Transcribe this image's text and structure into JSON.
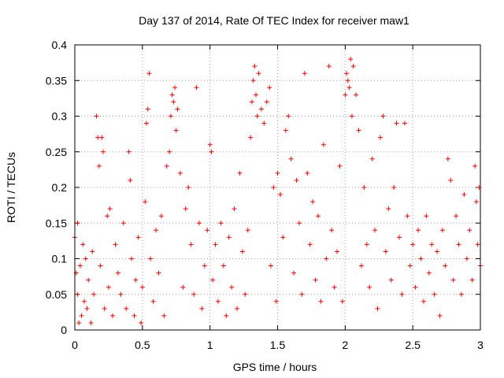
{
  "chart_data": {
    "type": "scatter",
    "title": "Day 137 of 2014, Rate Of TEC Index for receiver maw1",
    "xlabel": "GPS time / hours",
    "ylabel": "ROTI / TECUs",
    "xlim": [
      0,
      3
    ],
    "ylim": [
      0,
      0.4
    ],
    "x_ticks": [
      0,
      0.5,
      1,
      1.5,
      2,
      2.5,
      3
    ],
    "x_tick_labels": [
      "0",
      "0.5",
      "1",
      "1.5",
      "2",
      "2.5",
      "3"
    ],
    "y_ticks": [
      0,
      0.05,
      0.1,
      0.15,
      0.2,
      0.25,
      0.3,
      0.35,
      0.4
    ],
    "y_tick_labels": [
      "0",
      "0.05",
      "0.1",
      "0.15",
      "0.2",
      "0.25",
      "0.3",
      "0.35",
      "0.4"
    ],
    "grid": true,
    "marker": "plus",
    "color": "#ff0000",
    "series": [
      {
        "name": "ROTI",
        "points": [
          [
            0.0,
            0.13
          ],
          [
            0.01,
            0.08
          ],
          [
            0.02,
            0.15
          ],
          [
            0.02,
            0.05
          ],
          [
            0.03,
            0.01
          ],
          [
            0.04,
            0.09
          ],
          [
            0.05,
            0.02
          ],
          [
            0.06,
            0.12
          ],
          [
            0.07,
            0.04
          ],
          [
            0.08,
            0.1
          ],
          [
            0.09,
            0.03
          ],
          [
            0.1,
            0.07
          ],
          [
            0.12,
            0.01
          ],
          [
            0.13,
            0.11
          ],
          [
            0.14,
            0.05
          ],
          [
            0.16,
            0.3
          ],
          [
            0.17,
            0.27
          ],
          [
            0.18,
            0.23
          ],
          [
            0.19,
            0.09
          ],
          [
            0.2,
            0.27
          ],
          [
            0.21,
            0.25
          ],
          [
            0.22,
            0.03
          ],
          [
            0.24,
            0.16
          ],
          [
            0.25,
            0.06
          ],
          [
            0.26,
            0.17
          ],
          [
            0.28,
            0.02
          ],
          [
            0.3,
            0.12
          ],
          [
            0.32,
            0.08
          ],
          [
            0.34,
            0.05
          ],
          [
            0.36,
            0.15
          ],
          [
            0.38,
            0.03
          ],
          [
            0.4,
            0.25
          ],
          [
            0.41,
            0.21
          ],
          [
            0.42,
            0.1
          ],
          [
            0.44,
            0.02
          ],
          [
            0.45,
            0.07
          ],
          [
            0.47,
            0.13
          ],
          [
            0.49,
            0.01
          ],
          [
            0.5,
            0.06
          ],
          [
            0.52,
            0.18
          ],
          [
            0.53,
            0.29
          ],
          [
            0.54,
            0.31
          ],
          [
            0.55,
            0.36
          ],
          [
            0.56,
            0.1
          ],
          [
            0.58,
            0.04
          ],
          [
            0.6,
            0.14
          ],
          [
            0.62,
            0.08
          ],
          [
            0.64,
            0.16
          ],
          [
            0.66,
            0.02
          ],
          [
            0.68,
            0.23
          ],
          [
            0.7,
            0.25
          ],
          [
            0.71,
            0.3
          ],
          [
            0.72,
            0.33
          ],
          [
            0.73,
            0.32
          ],
          [
            0.74,
            0.34
          ],
          [
            0.75,
            0.28
          ],
          [
            0.76,
            0.31
          ],
          [
            0.78,
            0.22
          ],
          [
            0.8,
            0.06
          ],
          [
            0.82,
            0.17
          ],
          [
            0.84,
            0.2
          ],
          [
            0.86,
            0.12
          ],
          [
            0.88,
            0.05
          ],
          [
            0.9,
            0.34
          ],
          [
            0.92,
            0.15
          ],
          [
            0.94,
            0.03
          ],
          [
            0.96,
            0.09
          ],
          [
            0.98,
            0.14
          ],
          [
            1.0,
            0.26
          ],
          [
            1.01,
            0.25
          ],
          [
            1.02,
            0.07
          ],
          [
            1.04,
            0.12
          ],
          [
            1.06,
            0.04
          ],
          [
            1.08,
            0.15
          ],
          [
            1.1,
            0.09
          ],
          [
            1.12,
            0.02
          ],
          [
            1.14,
            0.13
          ],
          [
            1.16,
            0.06
          ],
          [
            1.18,
            0.17
          ],
          [
            1.2,
            0.03
          ],
          [
            1.22,
            0.22
          ],
          [
            1.24,
            0.11
          ],
          [
            1.26,
            0.05
          ],
          [
            1.28,
            0.14
          ],
          [
            1.3,
            0.27
          ],
          [
            1.31,
            0.32
          ],
          [
            1.32,
            0.35
          ],
          [
            1.33,
            0.37
          ],
          [
            1.34,
            0.33
          ],
          [
            1.35,
            0.3
          ],
          [
            1.36,
            0.36
          ],
          [
            1.38,
            0.31
          ],
          [
            1.4,
            0.29
          ],
          [
            1.42,
            0.32
          ],
          [
            1.44,
            0.34
          ],
          [
            1.45,
            0.09
          ],
          [
            1.47,
            0.2
          ],
          [
            1.49,
            0.04
          ],
          [
            1.5,
            0.22
          ],
          [
            1.52,
            0.19
          ],
          [
            1.54,
            0.13
          ],
          [
            1.56,
            0.28
          ],
          [
            1.58,
            0.3
          ],
          [
            1.6,
            0.24
          ],
          [
            1.62,
            0.08
          ],
          [
            1.64,
            0.21
          ],
          [
            1.66,
            0.15
          ],
          [
            1.68,
            0.05
          ],
          [
            1.7,
            0.36
          ],
          [
            1.72,
            0.22
          ],
          [
            1.74,
            0.12
          ],
          [
            1.76,
            0.18
          ],
          [
            1.78,
            0.07
          ],
          [
            1.8,
            0.16
          ],
          [
            1.82,
            0.04
          ],
          [
            1.84,
            0.26
          ],
          [
            1.86,
            0.1
          ],
          [
            1.88,
            0.37
          ],
          [
            1.9,
            0.14
          ],
          [
            1.92,
            0.06
          ],
          [
            1.94,
            0.11
          ],
          [
            1.96,
            0.23
          ],
          [
            1.98,
            0.04
          ],
          [
            2.0,
            0.33
          ],
          [
            2.01,
            0.36
          ],
          [
            2.02,
            0.35
          ],
          [
            2.03,
            0.34
          ],
          [
            2.04,
            0.38
          ],
          [
            2.05,
            0.3
          ],
          [
            2.06,
            0.37
          ],
          [
            2.08,
            0.33
          ],
          [
            2.1,
            0.28
          ],
          [
            2.12,
            0.09
          ],
          [
            2.14,
            0.2
          ],
          [
            2.16,
            0.12
          ],
          [
            2.18,
            0.06
          ],
          [
            2.2,
            0.24
          ],
          [
            2.22,
            0.14
          ],
          [
            2.24,
            0.03
          ],
          [
            2.26,
            0.27
          ],
          [
            2.28,
            0.3
          ],
          [
            2.3,
            0.11
          ],
          [
            2.32,
            0.17
          ],
          [
            2.34,
            0.07
          ],
          [
            2.36,
            0.2
          ],
          [
            2.38,
            0.29
          ],
          [
            2.4,
            0.13
          ],
          [
            2.42,
            0.05
          ],
          [
            2.44,
            0.29
          ],
          [
            2.46,
            0.16
          ],
          [
            2.48,
            0.09
          ],
          [
            2.5,
            0.12
          ],
          [
            2.52,
            0.06
          ],
          [
            2.54,
            0.14
          ],
          [
            2.56,
            0.1
          ],
          [
            2.58,
            0.04
          ],
          [
            2.6,
            0.16
          ],
          [
            2.62,
            0.08
          ],
          [
            2.64,
            0.12
          ],
          [
            2.66,
            0.05
          ],
          [
            2.68,
            0.11
          ],
          [
            2.7,
            0.02
          ],
          [
            2.72,
            0.14
          ],
          [
            2.74,
            0.09
          ],
          [
            2.76,
            0.24
          ],
          [
            2.78,
            0.21
          ],
          [
            2.8,
            0.07
          ],
          [
            2.82,
            0.16
          ],
          [
            2.84,
            0.12
          ],
          [
            2.86,
            0.05
          ],
          [
            2.88,
            0.19
          ],
          [
            2.9,
            0.1
          ],
          [
            2.92,
            0.14
          ],
          [
            2.94,
            0.07
          ],
          [
            2.96,
            0.23
          ],
          [
            2.97,
            0.18
          ],
          [
            2.98,
            0.12
          ],
          [
            2.99,
            0.2
          ],
          [
            3.0,
            0.09
          ]
        ]
      }
    ]
  }
}
